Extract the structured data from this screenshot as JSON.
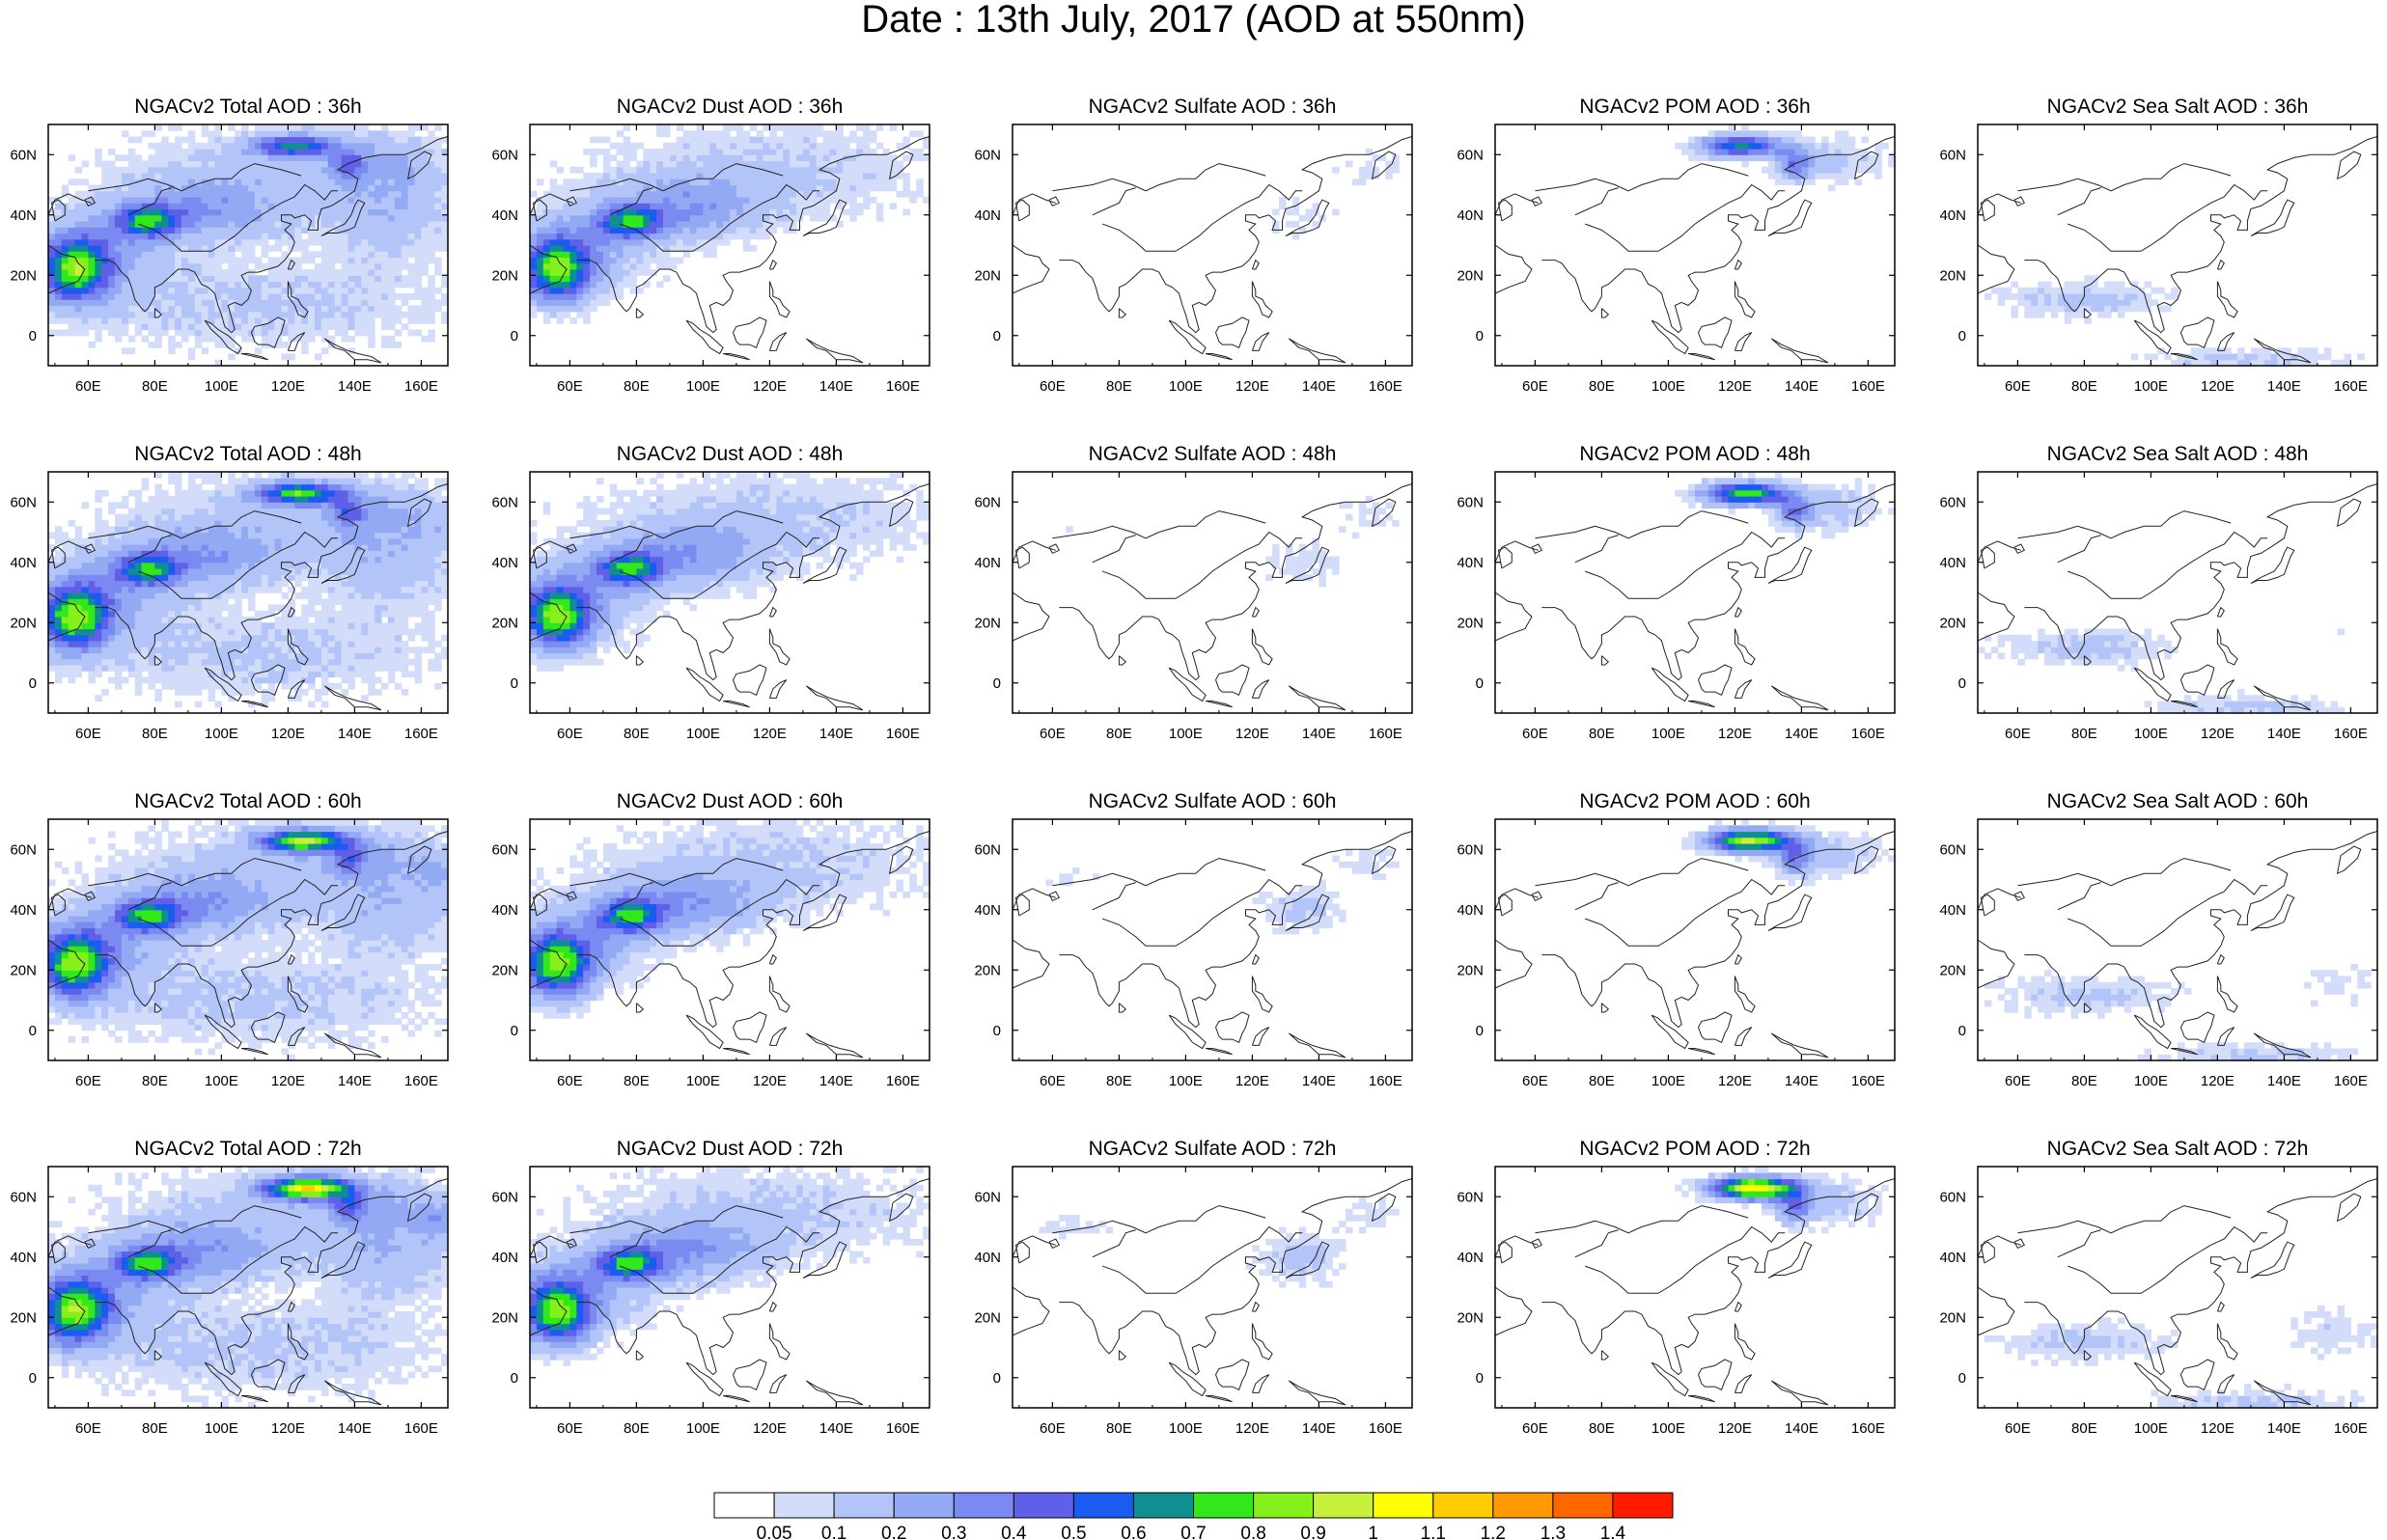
{
  "title": "Date : 13th July, 2017 (AOD at 550nm)",
  "panels": [
    {
      "title": "NGACv2 Total AOD : 36h",
      "species": "total",
      "hour": 36
    },
    {
      "title": "NGACv2 Dust AOD : 36h",
      "species": "dust",
      "hour": 36
    },
    {
      "title": "NGACv2 Sulfate AOD : 36h",
      "species": "sulfate",
      "hour": 36
    },
    {
      "title": "NGACv2 POM AOD : 36h",
      "species": "pom",
      "hour": 36
    },
    {
      "title": "NGACv2 Sea Salt AOD : 36h",
      "species": "seasalt",
      "hour": 36
    },
    {
      "title": "NGACv2 Total AOD : 48h",
      "species": "total",
      "hour": 48
    },
    {
      "title": "NGACv2 Dust AOD : 48h",
      "species": "dust",
      "hour": 48
    },
    {
      "title": "NGACv2 Sulfate AOD : 48h",
      "species": "sulfate",
      "hour": 48
    },
    {
      "title": "NGACv2 POM AOD : 48h",
      "species": "pom",
      "hour": 48
    },
    {
      "title": "NGACv2 Sea Salt AOD : 48h",
      "species": "seasalt",
      "hour": 48
    },
    {
      "title": "NGACv2 Total AOD : 60h",
      "species": "total",
      "hour": 60
    },
    {
      "title": "NGACv2 Dust AOD : 60h",
      "species": "dust",
      "hour": 60
    },
    {
      "title": "NGACv2 Sulfate AOD : 60h",
      "species": "sulfate",
      "hour": 60
    },
    {
      "title": "NGACv2 POM AOD : 60h",
      "species": "pom",
      "hour": 60
    },
    {
      "title": "NGACv2 Sea Salt AOD : 60h",
      "species": "seasalt",
      "hour": 60
    },
    {
      "title": "NGACv2 Total AOD : 72h",
      "species": "total",
      "hour": 72
    },
    {
      "title": "NGACv2 Dust AOD : 72h",
      "species": "dust",
      "hour": 72
    },
    {
      "title": "NGACv2 Sulfate AOD : 72h",
      "species": "sulfate",
      "hour": 72
    },
    {
      "title": "NGACv2 POM AOD : 72h",
      "species": "pom",
      "hour": 72
    },
    {
      "title": "NGACv2 Sea Salt  AOD : 72h",
      "species": "seasalt",
      "hour": 72
    }
  ],
  "axes": {
    "lon_range": [
      48,
      168
    ],
    "lat_range": [
      -10,
      70
    ],
    "x_ticks": [
      60,
      80,
      100,
      120,
      140,
      160
    ],
    "x_tick_labels": [
      "60E",
      "80E",
      "100E",
      "120E",
      "140E",
      "160E"
    ],
    "y_ticks": [
      0,
      20,
      40,
      60
    ],
    "y_tick_labels": [
      "0",
      "20N",
      "40N",
      "60N"
    ]
  },
  "colorbar": {
    "labels": [
      "0.05",
      "0.1",
      "0.2",
      "0.3",
      "0.4",
      "0.5",
      "0.6",
      "0.7",
      "0.8",
      "0.9",
      "1",
      "1.1",
      "1.2",
      "1.3",
      "1.4"
    ],
    "colors": [
      "#ffffff",
      "#d3ddfa",
      "#b3c5f8",
      "#93a9f4",
      "#7b8af0",
      "#5f5fe8",
      "#1a5cf2",
      "#0f8f8f",
      "#30e81a",
      "#86f01a",
      "#c6f03a",
      "#ffff00",
      "#ffcc00",
      "#ff9900",
      "#ff6600",
      "#ff1a00"
    ]
  }
}
